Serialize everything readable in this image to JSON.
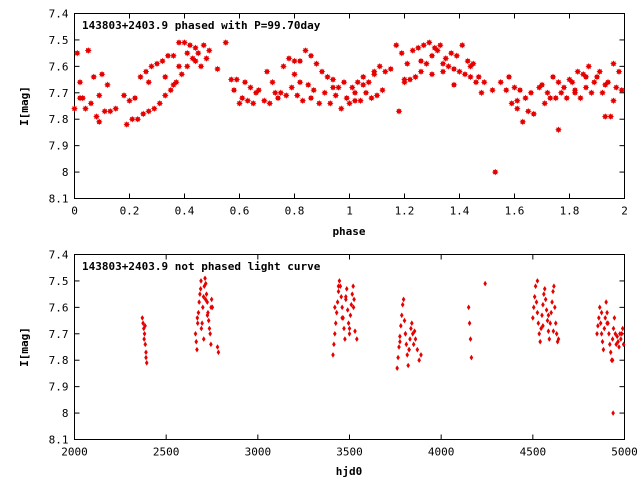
{
  "chart_data": [
    {
      "type": "scatter",
      "title": "143803+2403.9 phased with P=99.70day",
      "xlabel": "phase",
      "ylabel": "I[mag]",
      "xlim": [
        0,
        2
      ],
      "ylim": [
        8.1,
        7.4
      ],
      "y_inverted": true,
      "xticks": [
        "0",
        "0.2",
        "0.4",
        "0.6",
        "0.8",
        "1",
        "1.2",
        "1.4",
        "1.6",
        "1.8",
        "2"
      ],
      "yticks": [
        "7.4",
        "7.5",
        "7.6",
        "7.7",
        "7.8",
        "7.9",
        "8",
        "8.1"
      ],
      "marker": "filled-star",
      "color": "#e60000",
      "grid": false,
      "series": [
        {
          "x": [
            0.0,
            0.01,
            0.02,
            0.03,
            0.04,
            0.05,
            0.06,
            0.07,
            0.08,
            0.09,
            0.1,
            0.11,
            0.12,
            0.13,
            0.18,
            0.19,
            0.2,
            0.21,
            0.22,
            0.23,
            0.24,
            0.25,
            0.26,
            0.27,
            0.28,
            0.29,
            0.3,
            0.31,
            0.32,
            0.33,
            0.34,
            0.35,
            0.36,
            0.37,
            0.38,
            0.39,
            0.4,
            0.41,
            0.42,
            0.43,
            0.44,
            0.45,
            0.46,
            0.47,
            0.48,
            0.49,
            0.57,
            0.58,
            0.59,
            0.6,
            0.61,
            0.62,
            0.63,
            0.64,
            0.65,
            0.66,
            0.67,
            0.69,
            0.7,
            0.71,
            0.72,
            0.74,
            0.75,
            0.76,
            0.77,
            0.78,
            0.79,
            0.8,
            0.81,
            0.82,
            0.83,
            0.84,
            0.85,
            0.86,
            0.87,
            0.88,
            0.89,
            0.9,
            0.91,
            0.92,
            0.93,
            0.94,
            0.95,
            0.96,
            0.97,
            0.98,
            0.99,
            1.0,
            1.01,
            1.02,
            1.03,
            1.04,
            1.05,
            1.06,
            1.07,
            1.08,
            1.09,
            1.1,
            1.11,
            1.12,
            1.13,
            1.18,
            1.19,
            1.2,
            1.21,
            1.22,
            1.23,
            1.24,
            1.25,
            1.26,
            1.27,
            1.28,
            1.29,
            1.3,
            1.31,
            1.32,
            1.33,
            1.34,
            1.35,
            1.36,
            1.37,
            1.38,
            1.39,
            1.4,
            1.41,
            1.42,
            1.43,
            1.44,
            1.45,
            1.46,
            1.47,
            1.48,
            1.49,
            1.53,
            1.57,
            1.58,
            1.59,
            1.6,
            1.61,
            1.62,
            1.63,
            1.64,
            1.65,
            1.66,
            1.67,
            1.69,
            1.7,
            1.71,
            1.72,
            1.74,
            1.75,
            1.76,
            1.77,
            1.78,
            1.79,
            1.8,
            1.81,
            1.82,
            1.83,
            1.84,
            1.85,
            1.86,
            1.87,
            1.88,
            1.89,
            1.9,
            1.91,
            1.92,
            1.93,
            1.94,
            1.95,
            1.96,
            1.97,
            1.98,
            1.99,
            0.02,
            0.05,
            0.09,
            0.15,
            0.27,
            0.33,
            0.36,
            0.38,
            0.41,
            0.44,
            0.52,
            0.55,
            0.73,
            0.8,
            0.82,
            0.86,
            0.94,
            1.02,
            1.05,
            1.09,
            1.15,
            1.17,
            1.2,
            1.26,
            1.3,
            1.34,
            1.38,
            1.44,
            1.52,
            1.55,
            1.61,
            1.73,
            1.76,
            1.82,
            1.86,
            1.93,
            1.96
          ],
          "y": [
            7.76,
            7.55,
            7.66,
            7.72,
            7.76,
            7.54,
            7.74,
            7.64,
            7.79,
            7.81,
            7.63,
            7.77,
            7.67,
            7.77,
            7.71,
            7.82,
            7.73,
            7.8,
            7.72,
            7.8,
            7.64,
            7.78,
            7.62,
            7.77,
            7.6,
            7.76,
            7.59,
            7.74,
            7.58,
            7.71,
            7.56,
            7.69,
            7.56,
            7.66,
            7.51,
            7.63,
            7.51,
            7.6,
            7.52,
            7.57,
            7.53,
            7.55,
            7.6,
            7.52,
            7.57,
            7.54,
            7.65,
            7.69,
            7.65,
            7.74,
            7.72,
            7.66,
            7.73,
            7.68,
            7.74,
            7.7,
            7.69,
            7.73,
            7.62,
            7.74,
            7.66,
            7.72,
            7.7,
            7.6,
            7.71,
            7.57,
            7.68,
            7.58,
            7.71,
            7.58,
            7.73,
            7.54,
            7.67,
            7.56,
            7.69,
            7.59,
            7.74,
            7.62,
            7.7,
            7.64,
            7.74,
            7.65,
            7.71,
            7.68,
            7.76,
            7.66,
            7.72,
            7.74,
            7.68,
            7.7,
            7.66,
            7.73,
            7.64,
            7.7,
            7.66,
            7.72,
            7.63,
            7.71,
            7.6,
            7.69,
            7.62,
            7.77,
            7.55,
            7.66,
            7.59,
            7.65,
            7.54,
            7.64,
            7.53,
            7.62,
            7.52,
            7.59,
            7.51,
            7.56,
            7.53,
            7.54,
            7.52,
            7.59,
            7.57,
            7.6,
            7.55,
            7.61,
            7.56,
            7.62,
            7.52,
            7.63,
            7.58,
            7.64,
            7.59,
            7.66,
            7.64,
            7.7,
            7.66,
            8.0,
            7.69,
            7.64,
            7.74,
            7.68,
            7.76,
            7.69,
            7.81,
            7.72,
            7.77,
            7.7,
            7.78,
            7.68,
            7.67,
            7.74,
            7.7,
            7.64,
            7.72,
            7.84,
            7.7,
            7.68,
            7.72,
            7.65,
            7.66,
            7.69,
            7.62,
            7.72,
            7.63,
            7.68,
            7.6,
            7.7,
            7.66,
            7.64,
            7.62,
            7.7,
            7.79,
            7.66,
            7.79,
            7.59,
            7.68,
            7.62,
            7.69,
            7.72,
            7.54,
            7.71,
            7.76,
            7.66,
            7.64,
            7.67,
            7.6,
            7.55,
            7.58,
            7.61,
            7.51,
            7.7,
            7.63,
            7.66,
            7.72,
            7.68,
            7.73,
            7.67,
            7.62,
            7.61,
            7.52,
            7.65,
            7.58,
            7.63,
            7.62,
            7.67,
            7.6,
            7.69,
            7.66,
            7.73,
            7.72,
            7.66,
            7.7,
            7.64,
            7.67,
            7.73
          ]
        }
      ]
    },
    {
      "type": "scatter",
      "title": "143803+2403.9 not phased light curve",
      "xlabel": "hjd0",
      "ylabel": "I[mag]",
      "xlim": [
        2000,
        5000
      ],
      "ylim": [
        8.1,
        7.4
      ],
      "y_inverted": true,
      "xticks": [
        "2000",
        "2500",
        "3000",
        "3500",
        "4000",
        "4500",
        "5000"
      ],
      "yticks": [
        "7.4",
        "7.5",
        "7.6",
        "7.7",
        "7.8",
        "7.9",
        "8",
        "8.1"
      ],
      "marker": "filled-diamond",
      "color": "#e60000",
      "grid": false,
      "series": [
        {
          "x": [
            2370,
            2374,
            2378,
            2382,
            2386,
            2390,
            2394,
            2380,
            2385,
            2390,
            2660,
            2664,
            2668,
            2672,
            2676,
            2680,
            2684,
            2688,
            2692,
            2696,
            2700,
            2704,
            2708,
            2712,
            2716,
            2720,
            2724,
            2728,
            2732,
            2736,
            2740,
            2744,
            2748,
            2752,
            2670,
            2690,
            2705,
            2715,
            2725,
            2745,
            2780,
            2785,
            3410,
            3415,
            3420,
            3425,
            3430,
            3435,
            3440,
            3445,
            3450,
            3455,
            3460,
            3465,
            3470,
            3475,
            3480,
            3485,
            3490,
            3495,
            3500,
            3505,
            3510,
            3515,
            3520,
            3525,
            3530,
            3420,
            3440,
            3460,
            3480,
            3500,
            3522,
            3540,
            3760,
            3765,
            3770,
            3775,
            3780,
            3785,
            3790,
            3795,
            3800,
            3805,
            3810,
            3815,
            3820,
            3825,
            3830,
            3835,
            3840,
            3845,
            3850,
            3855,
            3860,
            3870,
            3880,
            3890,
            3775,
            3805,
            3825,
            4150,
            4155,
            4160,
            4165,
            4240,
            4500,
            4505,
            4510,
            4515,
            4520,
            4525,
            4530,
            4535,
            4540,
            4545,
            4550,
            4555,
            4560,
            4565,
            4570,
            4575,
            4580,
            4585,
            4590,
            4595,
            4600,
            4605,
            4610,
            4615,
            4620,
            4625,
            4630,
            4635,
            4640,
            4525,
            4555,
            4585,
            4612,
            4850,
            4855,
            4860,
            4865,
            4870,
            4875,
            4880,
            4885,
            4890,
            4895,
            4900,
            4905,
            4910,
            4915,
            4920,
            4925,
            4930,
            4935,
            4940,
            4945,
            4950,
            4955,
            4960,
            4965,
            4970,
            4975,
            4980,
            4985,
            4990,
            4995,
            4875,
            4905,
            4935,
            4938
          ],
          "y": [
            7.64,
            7.66,
            7.68,
            7.7,
            7.74,
            7.77,
            7.81,
            7.72,
            7.67,
            7.79,
            7.7,
            7.73,
            7.76,
            7.66,
            7.62,
            7.58,
            7.55,
            7.53,
            7.68,
            7.66,
            7.6,
            7.56,
            7.52,
            7.49,
            7.51,
            7.55,
            7.58,
            7.62,
            7.65,
            7.68,
            7.7,
            7.74,
            7.57,
            7.6,
            7.64,
            7.5,
            7.72,
            7.57,
            7.63,
            7.6,
            7.75,
            7.77,
            7.78,
            7.74,
            7.7,
            7.66,
            7.62,
            7.58,
            7.54,
            7.5,
            7.52,
            7.56,
            7.6,
            7.64,
            7.68,
            7.72,
            7.57,
            7.53,
            7.61,
            7.66,
            7.7,
            7.63,
            7.59,
            7.55,
            7.52,
            7.57,
            7.69,
            7.6,
            7.52,
            7.64,
            7.56,
            7.68,
            7.6,
            7.72,
            7.83,
            7.79,
            7.75,
            7.71,
            7.67,
            7.63,
            7.59,
            7.57,
            7.65,
            7.7,
            7.74,
            7.78,
            7.82,
            7.76,
            7.72,
            7.68,
            7.66,
            7.7,
            7.74,
            7.69,
            7.72,
            7.76,
            7.8,
            7.78,
            7.73,
            7.7,
            7.76,
            7.6,
            7.66,
            7.72,
            7.79,
            7.51,
            7.64,
            7.6,
            7.56,
            7.52,
            7.58,
            7.62,
            7.66,
            7.7,
            7.73,
            7.68,
            7.63,
            7.59,
            7.55,
            7.53,
            7.57,
            7.61,
            7.65,
            7.69,
            7.72,
            7.66,
            7.62,
            7.58,
            7.54,
            7.52,
            7.6,
            7.66,
            7.7,
            7.73,
            7.72,
            7.5,
            7.67,
            7.63,
            7.69,
            7.7,
            7.67,
            7.64,
            7.6,
            7.66,
            7.7,
            7.73,
            7.76,
            7.68,
            7.64,
            7.58,
            7.62,
            7.66,
            7.7,
            7.74,
            7.77,
            7.8,
            7.72,
            7.68,
            7.64,
            7.7,
            7.74,
            7.71,
            7.73,
            7.75,
            7.7,
            7.72,
            7.7,
            7.68,
            7.74,
            7.62,
            7.66,
            7.8,
            8.0
          ]
        }
      ]
    }
  ]
}
